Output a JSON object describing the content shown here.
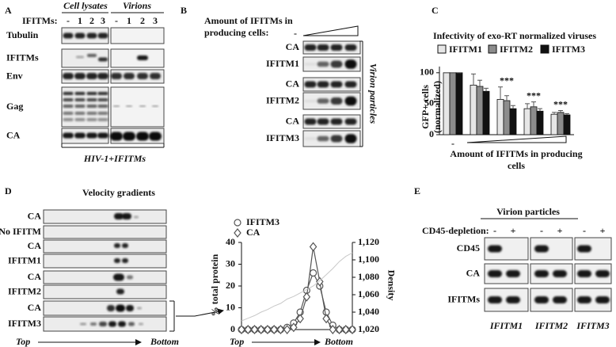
{
  "panels": {
    "A": {
      "label": "A",
      "group_labels": [
        "Cell lysates",
        "Virions"
      ],
      "lanes_label": "IFITMs:",
      "lanes": [
        "-",
        "1",
        "2",
        "3",
        "-",
        "1",
        "2",
        "3"
      ],
      "rows": [
        "Tubulin",
        "IFITMs",
        "Env",
        "Gag",
        "CA"
      ],
      "footer": "HIV-1+IFITMs"
    },
    "B": {
      "label": "B",
      "header": "Amount of IFITMs in producing cells:",
      "lane": "-",
      "rows": [
        "CA",
        "IFITM1",
        "CA",
        "IFITM2",
        "CA",
        "IFITM3"
      ],
      "side_label": "Virion particles"
    },
    "C": {
      "label": "C"
    },
    "D": {
      "label": "D",
      "title": "Velocity gradients",
      "rows": [
        "CA",
        "No IFITM",
        "CA",
        "IFITM1",
        "CA",
        "IFITM2",
        "CA",
        "IFITM3"
      ],
      "start": "Top",
      "end": "Bottom"
    },
    "E": {
      "label": "E",
      "title": "Virion particles",
      "lanes_label": "CD45-depletion:",
      "lanes": [
        "-",
        "+",
        "-",
        "+",
        "-",
        "+"
      ],
      "rows": [
        "CD45",
        "CA",
        "IFITMs"
      ],
      "groups": [
        "IFITM1",
        "IFITM2",
        "IFITM3"
      ]
    }
  },
  "chart_data": [
    {
      "type": "bar",
      "title": "Infectivity of exo-RT normalized viruses",
      "categories": [
        "-",
        null,
        null,
        null,
        null
      ],
      "series": [
        {
          "name": "IFITM1",
          "color": "#e6e6e6",
          "values": [
            100,
            80,
            57,
            42,
            33
          ],
          "errors": [
            0,
            18,
            20,
            8,
            3
          ]
        },
        {
          "name": "IFITM2",
          "color": "#8c8c8c",
          "values": [
            100,
            78,
            55,
            45,
            36
          ],
          "errors": [
            0,
            10,
            8,
            8,
            3
          ]
        },
        {
          "name": "IFITM3",
          "color": "#111111",
          "values": [
            100,
            70,
            42,
            38,
            32
          ],
          "errors": [
            0,
            5,
            5,
            4,
            2
          ]
        }
      ],
      "significance": [
        null,
        null,
        "***",
        "***",
        "***"
      ],
      "ylabel": "GFP+ cells (normalized)",
      "xlabel": "Amount of IFITMs in producing cells",
      "ylim": [
        0,
        110
      ],
      "yticks": [
        0,
        50,
        100
      ]
    },
    {
      "type": "line",
      "x": [
        1,
        2,
        3,
        4,
        5,
        6,
        7,
        8,
        9,
        10,
        11,
        12,
        13,
        14,
        15,
        16,
        17,
        18
      ],
      "xlim": [
        1,
        18
      ],
      "series": [
        {
          "name": "IFITM3",
          "marker": "circle",
          "color": "#555555",
          "values": [
            0,
            0,
            0,
            0,
            0,
            0,
            0,
            1,
            3,
            8,
            18,
            26,
            20,
            8,
            2,
            0,
            0,
            0
          ]
        },
        {
          "name": "CA",
          "marker": "diamond",
          "color": "#555555",
          "values": [
            0,
            0,
            0,
            0,
            0,
            0,
            0,
            0,
            1,
            5,
            15,
            38,
            22,
            5,
            0,
            0,
            0,
            0
          ]
        },
        {
          "axis": "y2",
          "color": "#c8c8c8",
          "values": [
            1030,
            1033,
            1036,
            1040,
            1043,
            1047,
            1050,
            1055,
            1058,
            1062,
            1066,
            1070,
            1076,
            1083,
            1090,
            1098,
            1104,
            1108
          ]
        }
      ],
      "ylabel": "% total protein",
      "y2label": "Density",
      "ylim": [
        0,
        40
      ],
      "yticks": [
        0,
        10,
        20,
        30,
        40
      ],
      "y2lim": [
        1020,
        1120
      ],
      "y2ticks": [
        {
          "value": 1020,
          "label": "1,020"
        },
        {
          "value": 1040,
          "label": "1,040"
        },
        {
          "value": 1060,
          "label": "1,060"
        },
        {
          "value": 1080,
          "label": "1,080"
        },
        {
          "value": 1100,
          "label": "1,100"
        },
        {
          "value": 1120,
          "label": "1,120"
        }
      ],
      "x_start_label": "Top",
      "x_end_label": "Bottom"
    }
  ]
}
